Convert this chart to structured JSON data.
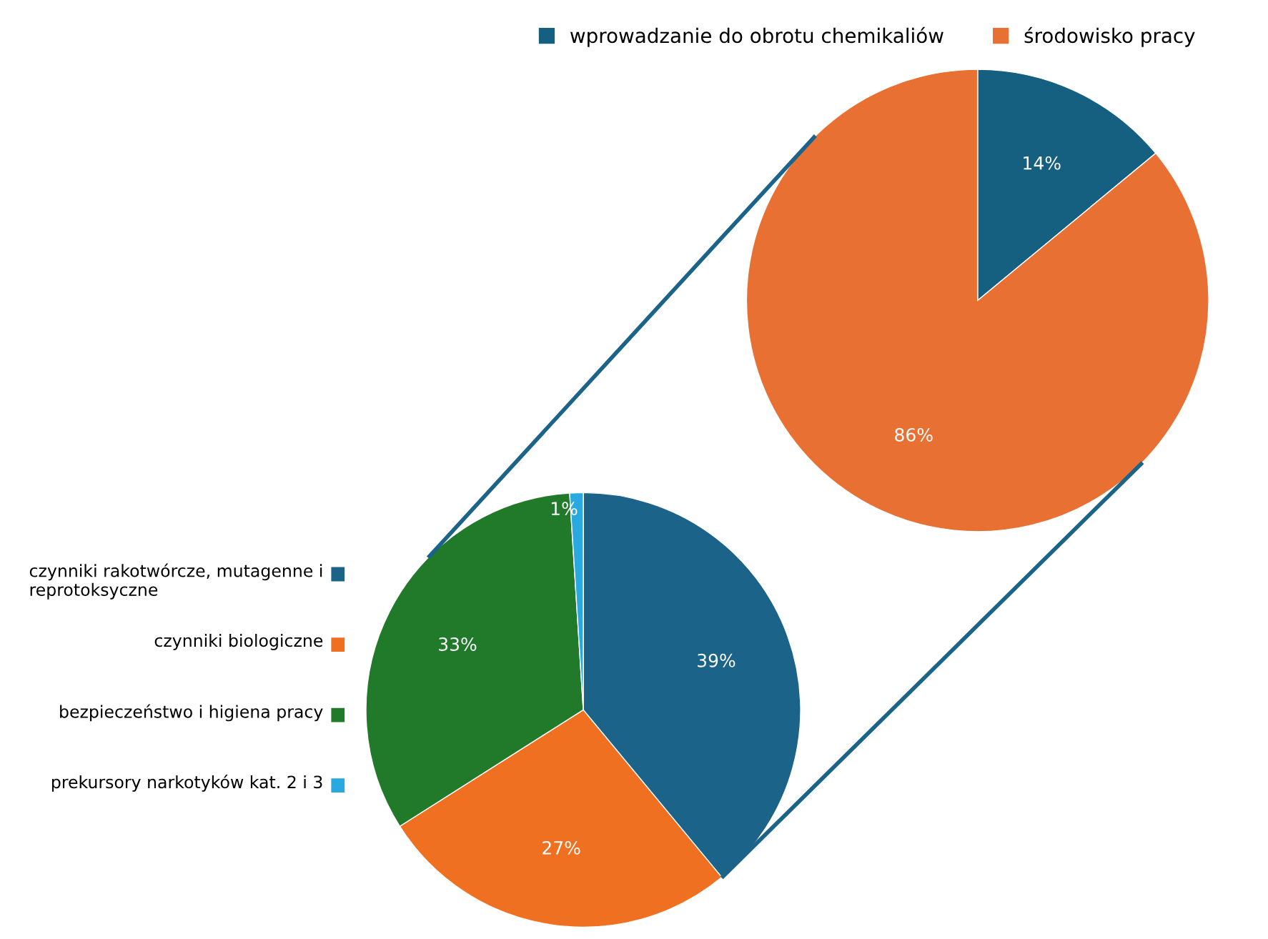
{
  "chart_data": [
    {
      "type": "pie",
      "categories": [
        "czynniki rakotwórcze, mutagenne i reprotoksyczne",
        "czynniki biologiczne",
        "bezpieczeństwo i higiena pracy",
        "prekursory narkotyków kat. 2 i 3"
      ],
      "values": [
        39,
        27,
        33,
        1
      ],
      "value_labels": [
        "39%",
        "27%",
        "33%",
        "1%"
      ],
      "colors": [
        "#1b6389",
        "#f07022",
        "#217a2a",
        "#2aa8e0"
      ],
      "legend": "left"
    },
    {
      "type": "pie",
      "categories": [
        "wprowadzanie do obrotu chemikaliów",
        "środowisko pracy"
      ],
      "values": [
        14,
        86
      ],
      "value_labels": [
        "14%",
        "86%"
      ],
      "colors": [
        "#155f80",
        "#e87033"
      ],
      "legend": "top"
    }
  ]
}
